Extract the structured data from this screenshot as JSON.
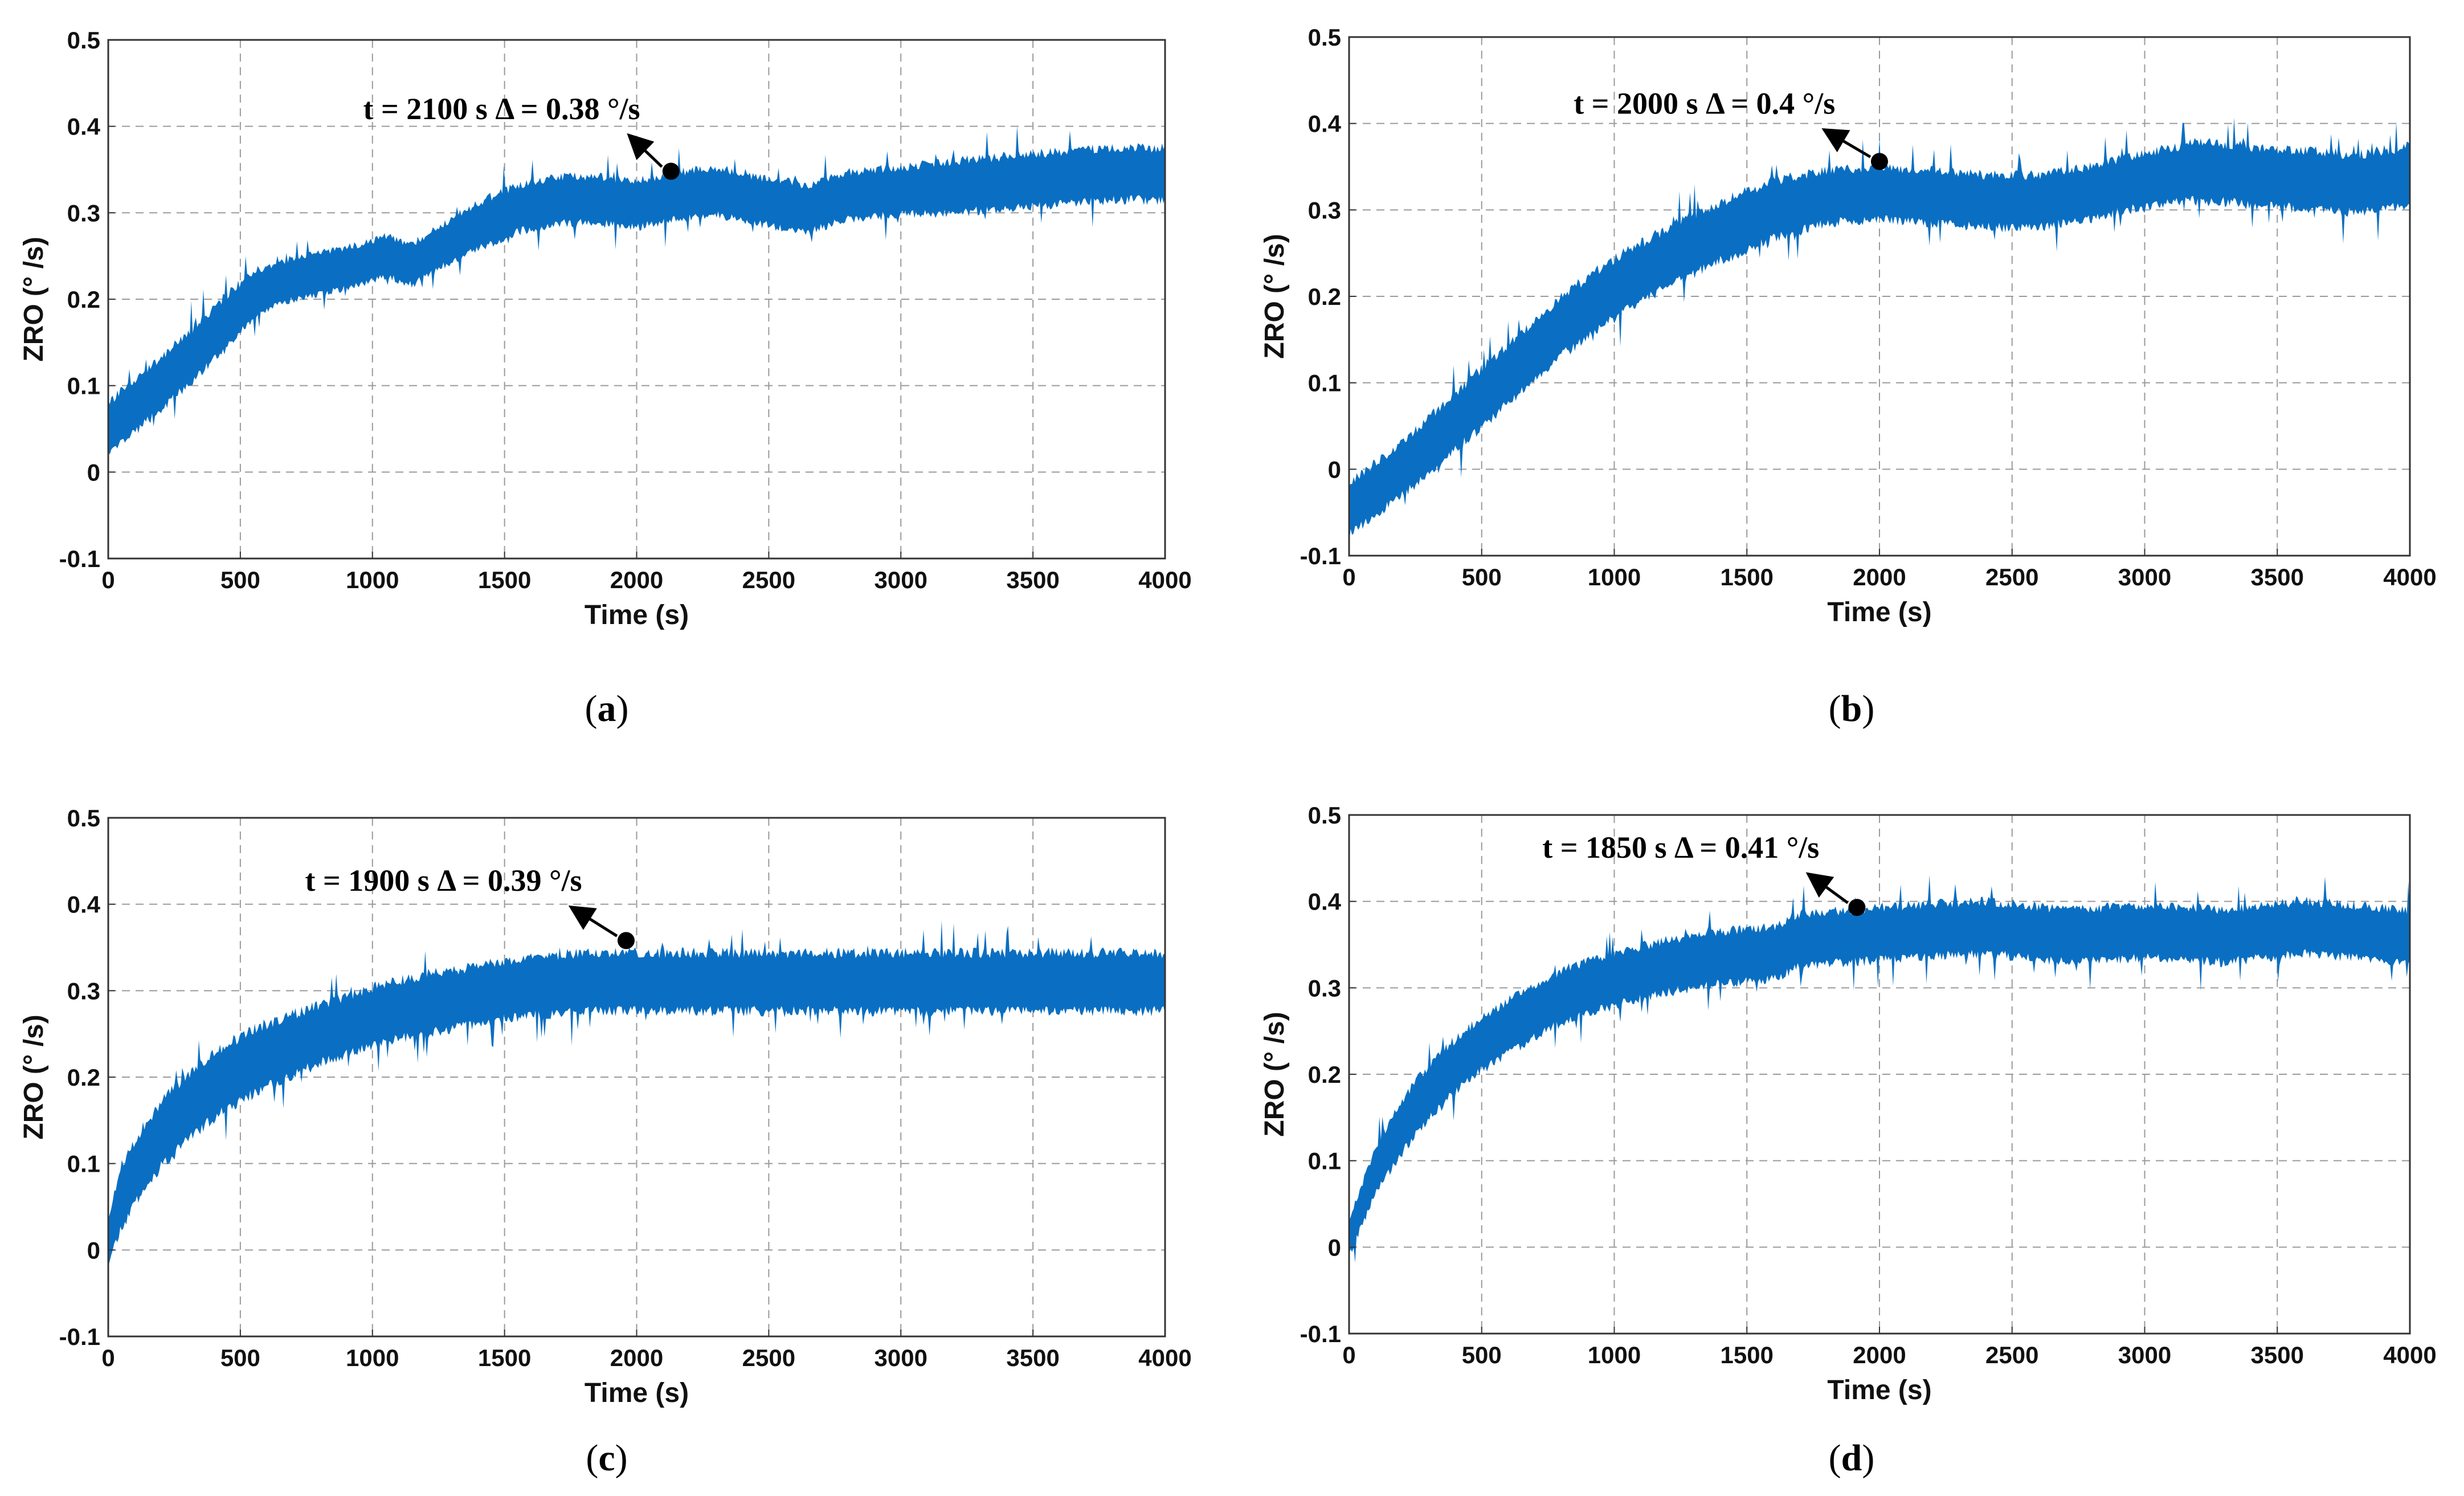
{
  "figure": {
    "panel_ids": [
      "a",
      "b",
      "c",
      "d"
    ]
  },
  "chart_data": [
    {
      "id": "a",
      "type": "line",
      "caption_letter": "a",
      "xlabel": "Time (s)",
      "ylabel": "ZRO (° /s)",
      "xlim": [
        0,
        4000
      ],
      "ylim": [
        -0.1,
        0.5
      ],
      "xticks": [
        0,
        500,
        1000,
        1500,
        2000,
        2500,
        3000,
        3500,
        4000
      ],
      "yticks": [
        -0.1,
        0,
        0.1,
        0.2,
        0.3,
        0.4,
        0.5
      ],
      "grid": true,
      "series": [
        {
          "name": "ZRO",
          "color": "#0a6fc2",
          "x": [
            0,
            150,
            300,
            450,
            550,
            650,
            800,
            950,
            1050,
            1150,
            1250,
            1400,
            1550,
            1700,
            1850,
            2000,
            2150,
            2300,
            2450,
            2650,
            2800,
            3000,
            3200,
            3400,
            3600,
            3800,
            4000
          ],
          "y": [
            0.05,
            0.09,
            0.13,
            0.175,
            0.205,
            0.22,
            0.23,
            0.24,
            0.25,
            0.24,
            0.26,
            0.285,
            0.305,
            0.315,
            0.315,
            0.31,
            0.32,
            0.325,
            0.315,
            0.305,
            0.32,
            0.325,
            0.33,
            0.335,
            0.34,
            0.345,
            0.345
          ],
          "noise": [
            0.045,
            0.045,
            0.045,
            0.045,
            0.04,
            0.035,
            0.035,
            0.035,
            0.035,
            0.035,
            0.035,
            0.04,
            0.04,
            0.04,
            0.04,
            0.04,
            0.04,
            0.04,
            0.04,
            0.04,
            0.04,
            0.04,
            0.045,
            0.045,
            0.045,
            0.045,
            0.045
          ]
        }
      ],
      "marker": {
        "x": 2130,
        "y": 0.348
      },
      "annotation": {
        "text": "t = 2100 s  Δ = 0.38 °/s",
        "arrow_tail": {
          "x": 1970,
          "y": 0.39
        }
      }
    },
    {
      "id": "b",
      "type": "line",
      "caption_letter": "b",
      "xlabel": "Time (s)",
      "ylabel": "ZRO (° /s)",
      "xlim": [
        0,
        4000
      ],
      "ylim": [
        -0.1,
        0.5
      ],
      "xticks": [
        0,
        500,
        1000,
        1500,
        2000,
        2500,
        3000,
        3500,
        4000
      ],
      "yticks": [
        -0.1,
        0,
        0.1,
        0.2,
        0.3,
        0.4,
        0.5
      ],
      "grid": true,
      "series": [
        {
          "name": "ZRO",
          "color": "#0a6fc2",
          "x": [
            0,
            200,
            400,
            600,
            800,
            1000,
            1200,
            1400,
            1600,
            1800,
            2000,
            2200,
            2400,
            2600,
            2800,
            3000,
            3200,
            3400,
            3600,
            3800,
            4000
          ],
          "y": [
            -0.045,
            0.0,
            0.055,
            0.11,
            0.165,
            0.21,
            0.245,
            0.275,
            0.3,
            0.315,
            0.32,
            0.315,
            0.31,
            0.31,
            0.32,
            0.335,
            0.345,
            0.34,
            0.335,
            0.33,
            0.34
          ],
          "noise": [
            0.045,
            0.045,
            0.05,
            0.05,
            0.05,
            0.05,
            0.05,
            0.05,
            0.05,
            0.045,
            0.045,
            0.045,
            0.045,
            0.045,
            0.045,
            0.045,
            0.05,
            0.05,
            0.05,
            0.05,
            0.05
          ]
        }
      ],
      "marker": {
        "x": 2000,
        "y": 0.356
      },
      "annotation": {
        "text": "t = 2000 s  Δ = 0.4 °/s",
        "arrow_tail": {
          "x": 1790,
          "y": 0.393
        }
      }
    },
    {
      "id": "c",
      "type": "line",
      "caption_letter": "c",
      "xlabel": "Time (s)",
      "ylabel": "ZRO (° /s)",
      "xlim": [
        0,
        4000
      ],
      "ylim": [
        -0.1,
        0.5
      ],
      "xticks": [
        0,
        500,
        1000,
        1500,
        2000,
        2500,
        3000,
        3500,
        4000
      ],
      "yticks": [
        -0.1,
        0,
        0.1,
        0.2,
        0.3,
        0.4,
        0.5
      ],
      "grid": true,
      "series": [
        {
          "name": "ZRO",
          "color": "#0a6fc2",
          "x": [
            0,
            50,
            100,
            200,
            300,
            400,
            500,
            600,
            800,
            1000,
            1200,
            1400,
            1600,
            1800,
            2000,
            2300,
            2600,
            3000,
            3400,
            3700,
            4000
          ],
          "y": [
            0.01,
            0.06,
            0.09,
            0.135,
            0.165,
            0.19,
            0.21,
            0.225,
            0.25,
            0.27,
            0.285,
            0.295,
            0.305,
            0.31,
            0.31,
            0.31,
            0.31,
            0.31,
            0.31,
            0.31,
            0.31
          ],
          "noise": [
            0.04,
            0.05,
            0.055,
            0.055,
            0.055,
            0.055,
            0.055,
            0.055,
            0.05,
            0.05,
            0.05,
            0.05,
            0.05,
            0.05,
            0.05,
            0.05,
            0.05,
            0.05,
            0.05,
            0.05,
            0.05
          ]
        }
      ],
      "marker": {
        "x": 1960,
        "y": 0.358
      },
      "annotation": {
        "text": "t = 1900 s  Δ = 0.39 °/s",
        "arrow_tail": {
          "x": 1750,
          "y": 0.397
        }
      }
    },
    {
      "id": "d",
      "type": "line",
      "caption_letter": "d",
      "xlabel": "Time (s)",
      "ylabel": "ZRO (° /s)",
      "xlim": [
        0,
        4000
      ],
      "ylim": [
        -0.1,
        0.5
      ],
      "xticks": [
        0,
        500,
        1000,
        1500,
        2000,
        2500,
        3000,
        3500,
        4000
      ],
      "yticks": [
        -0.1,
        0,
        0.1,
        0.2,
        0.3,
        0.4,
        0.5
      ],
      "grid": true,
      "series": [
        {
          "name": "ZRO",
          "color": "#0a6fc2",
          "x": [
            0,
            50,
            100,
            200,
            300,
            400,
            500,
            600,
            800,
            1000,
            1200,
            1400,
            1600,
            1700,
            1900,
            2100,
            2400,
            2700,
            3000,
            3300,
            3600,
            3800,
            4000
          ],
          "y": [
            0.01,
            0.05,
            0.09,
            0.14,
            0.18,
            0.21,
            0.235,
            0.255,
            0.29,
            0.31,
            0.325,
            0.335,
            0.34,
            0.355,
            0.36,
            0.365,
            0.37,
            0.36,
            0.365,
            0.36,
            0.37,
            0.365,
            0.36
          ],
          "noise": [
            0.03,
            0.035,
            0.04,
            0.045,
            0.045,
            0.045,
            0.045,
            0.045,
            0.045,
            0.045,
            0.045,
            0.045,
            0.045,
            0.045,
            0.045,
            0.045,
            0.045,
            0.045,
            0.045,
            0.045,
            0.045,
            0.045,
            0.045
          ]
        }
      ],
      "marker": {
        "x": 1915,
        "y": 0.393
      },
      "annotation": {
        "text": "t = 1850 s  Δ = 0.41 °/s",
        "arrow_tail": {
          "x": 1730,
          "y": 0.432
        }
      }
    }
  ]
}
